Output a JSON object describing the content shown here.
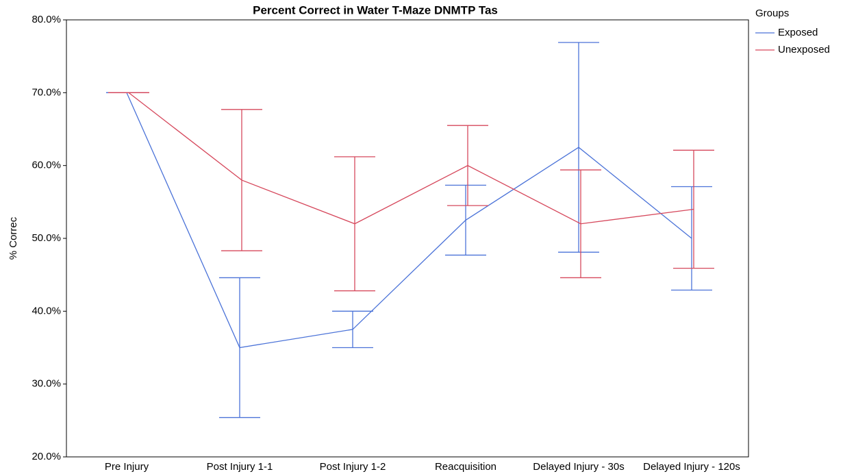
{
  "chart_data": {
    "type": "line",
    "title": "Percent Correct in Water T-Maze DNMTP Tas",
    "y_label": "% Correc",
    "legend_title": "Groups",
    "categories": [
      "Pre Injury",
      "Post Injury 1-1",
      "Post Injury 1-2",
      "Reacquisition",
      "Delayed Injury - 30s",
      "Delayed Injury - 120s"
    ],
    "series": [
      {
        "name": "Exposed",
        "color": "#4a72d8",
        "values": [
          70,
          35,
          37.5,
          52.5,
          62.5,
          50
        ],
        "errors": [
          0,
          9.6,
          2.5,
          4.8,
          14.4,
          7.1
        ]
      },
      {
        "name": "Unexposed",
        "color": "#d6485c",
        "values": [
          70,
          58,
          52,
          60,
          52,
          54
        ],
        "errors": [
          0,
          9.7,
          9.2,
          5.5,
          7.4,
          8.1
        ]
      }
    ],
    "ylim": [
      20,
      80
    ],
    "yticks": [
      {
        "value": 20,
        "label": "20.0%"
      },
      {
        "value": 30,
        "label": "30.0%"
      },
      {
        "value": 40,
        "label": "40.0%"
      },
      {
        "value": 50,
        "label": "50.0%"
      },
      {
        "value": 60,
        "label": "60.0%"
      },
      {
        "value": 70,
        "label": "70.0%"
      },
      {
        "value": 80,
        "label": "80.0%"
      }
    ],
    "legend": "outside-top-right",
    "grid": false
  }
}
